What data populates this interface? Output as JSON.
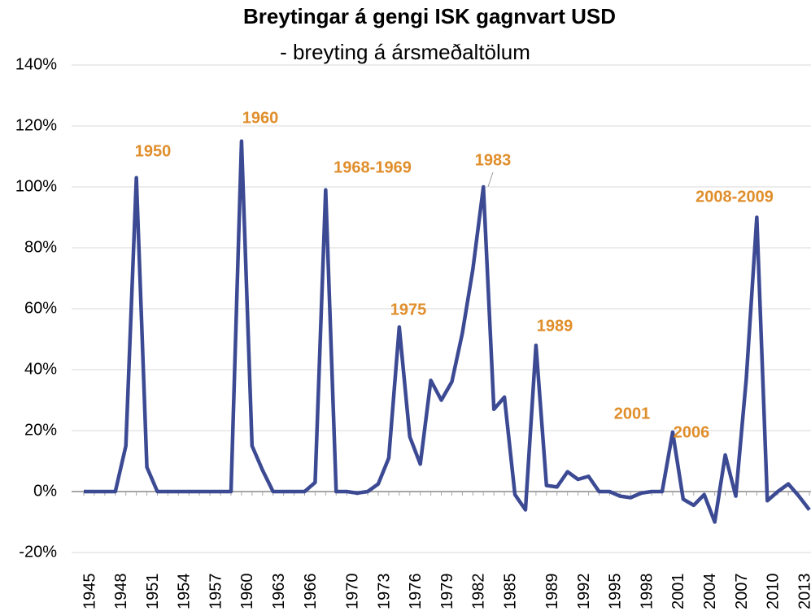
{
  "chart_data": {
    "type": "line",
    "title": "Breytingar á gengi ISK gagnvart USD",
    "subtitle": "- breyting á ársmeðaltölum",
    "x": [
      1945,
      1946,
      1947,
      1948,
      1949,
      1950,
      1951,
      1952,
      1953,
      1954,
      1955,
      1956,
      1957,
      1958,
      1959,
      1960,
      1961,
      1962,
      1963,
      1964,
      1965,
      1966,
      1967,
      1968,
      1969,
      1970,
      1971,
      1972,
      1973,
      1974,
      1975,
      1976,
      1977,
      1978,
      1979,
      1980,
      1981,
      1982,
      1983,
      1984,
      1985,
      1986,
      1987,
      1988,
      1989,
      1990,
      1991,
      1992,
      1993,
      1994,
      1995,
      1996,
      1997,
      1998,
      1999,
      2000,
      2001,
      2002,
      2003,
      2004,
      2005,
      2006,
      2007,
      2008,
      2009,
      2010,
      2011,
      2012,
      2013,
      2014
    ],
    "series": [
      {
        "name": "ISK/USD",
        "color": "#3c4a94",
        "values": [
          0,
          0,
          0,
          0,
          15,
          103,
          8,
          0,
          0,
          0,
          0,
          0,
          0,
          0,
          0,
          115,
          15,
          7,
          0,
          0,
          0,
          0,
          3,
          99,
          0,
          0,
          -0.5,
          0,
          2.5,
          11,
          54,
          18,
          9,
          36.5,
          30,
          36,
          52,
          73,
          100,
          27,
          31,
          -1,
          -6,
          48,
          2,
          1.5,
          6.5,
          4,
          5,
          0,
          0,
          -1.5,
          -2,
          -0.5,
          0,
          0,
          19.5,
          -2.5,
          -4.5,
          -1,
          -10,
          12,
          -1.5,
          37,
          90,
          -3,
          0,
          2.5,
          -1.5,
          -6
        ]
      }
    ],
    "xlim": [
      1945,
      2014
    ],
    "xticks": [
      1945,
      1948,
      1951,
      1954,
      1957,
      1960,
      1963,
      1966,
      1970,
      1973,
      1976,
      1979,
      1982,
      1985,
      1989,
      1992,
      1995,
      1998,
      2001,
      2004,
      2007,
      2010,
      2013
    ],
    "ylim": [
      -20,
      140
    ],
    "yticks": [
      {
        "value": -20,
        "label": "-20%"
      },
      {
        "value": 0,
        "label": "0%"
      },
      {
        "value": 20,
        "label": "20%"
      },
      {
        "value": 40,
        "label": "40%"
      },
      {
        "value": 60,
        "label": "60%"
      },
      {
        "value": 80,
        "label": "80%"
      },
      {
        "value": 100,
        "label": "100%"
      },
      {
        "value": 120,
        "label": "120%"
      },
      {
        "value": 140,
        "label": "140%"
      }
    ],
    "grid": true,
    "annotations": [
      "1950",
      "1960",
      "1968-1969",
      "1983",
      "1975",
      "1989",
      "2001",
      "2006",
      "2008-2009"
    ]
  }
}
